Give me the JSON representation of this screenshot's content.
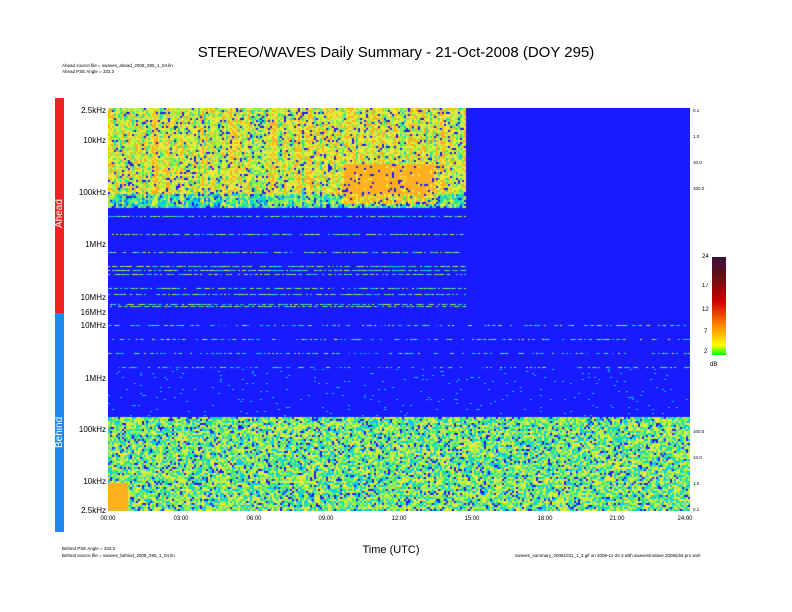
{
  "title": "STEREO/WAVES Daily Summary - 21-Oct-2008 (DOY 295)",
  "header_lines": [
    "Ahead source file = swaves_ahead_2008_295_1_04.lin",
    "Ahead PSE Angle = 333.3"
  ],
  "footer_left_lines": [
    "Behind PSE Angle = 333.3",
    "Behind source file = swaves_behind_2008_295_1_04.lin"
  ],
  "footer_right": "swaves_summary_20081021_1_3.gif on 2008-11-20 3 with swaves/mdave.2008/plot.pro wvh",
  "colors": {
    "ahead_bar": "#ee2222",
    "behind_bar": "#2288ee",
    "background_blue": "#1a1aff"
  },
  "chart_data": {
    "type": "heatmap",
    "title": "STEREO/WAVES Daily Summary - 21-Oct-2008 (DOY 295)",
    "xlabel": "Time (UTC)",
    "x_ticks": [
      "00:00",
      "03:00",
      "06:00",
      "09:00",
      "12:00",
      "15:00",
      "18:00",
      "21:00",
      "24:00"
    ],
    "xlim_hours": [
      0,
      24
    ],
    "panels": [
      {
        "name": "Ahead",
        "y_ticks": [
          "2.5kHz",
          "10kHz",
          "100kHz",
          "1MHz",
          "10MHz",
          "16MHz"
        ],
        "right_ticks": [
          "0.1",
          "1.0",
          "10.0",
          "100.0"
        ],
        "data_ends_hour": 14.75,
        "sun_burst_hours": [
          9.6,
          13.5
        ]
      },
      {
        "name": "Behind",
        "y_ticks": [
          "10MHz",
          "1MHz",
          "100kHz",
          "10kHz",
          "2.5kHz"
        ],
        "right_ticks": [
          "100.0",
          "10.0",
          "1.0",
          "0.1"
        ],
        "data_ends_hour": 24
      }
    ],
    "colorbar": {
      "unit": "dB",
      "ticks": [
        "24",
        "17",
        "12",
        "7",
        "2"
      ],
      "range": [
        2,
        24
      ]
    }
  }
}
